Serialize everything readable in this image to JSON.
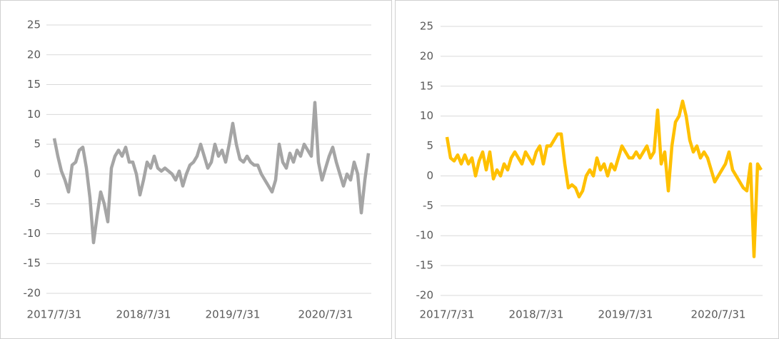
{
  "chart_data": [
    {
      "type": "line",
      "color": "#a5a5a5",
      "grid": true,
      "ylim": [
        -20,
        25
      ],
      "yticks": [
        -20,
        -15,
        -10,
        -5,
        0,
        5,
        10,
        15,
        20,
        25
      ],
      "categories": [
        "2017/7/31",
        null,
        null,
        null,
        null,
        null,
        null,
        null,
        null,
        null,
        null,
        null,
        null,
        null,
        null,
        null,
        null,
        null,
        null,
        null,
        null,
        null,
        null,
        null,
        null,
        "2018/7/31",
        null,
        null,
        null,
        null,
        null,
        null,
        null,
        null,
        null,
        null,
        null,
        null,
        null,
        null,
        null,
        null,
        null,
        null,
        null,
        null,
        null,
        null,
        null,
        null,
        "2019/7/31",
        null,
        null,
        null,
        null,
        null,
        null,
        null,
        null,
        null,
        null,
        null,
        null,
        null,
        null,
        null,
        null,
        null,
        null,
        null,
        null,
        null,
        null,
        null,
        null,
        null,
        "2020/7/31",
        null,
        null,
        null,
        null,
        null,
        null,
        null,
        null,
        null,
        null,
        null,
        null
      ],
      "values": [
        6,
        3,
        0.5,
        -1,
        -3,
        1.5,
        2,
        4,
        4.5,
        1,
        -4,
        -11.5,
        -7,
        -3,
        -5,
        -8,
        1,
        3,
        4,
        3,
        4.5,
        2,
        2,
        0,
        -3.5,
        -1,
        2,
        1,
        3,
        1,
        0.5,
        1,
        0.5,
        0,
        -1,
        0.5,
        -2,
        0,
        1.5,
        2,
        3,
        5,
        3,
        1,
        2,
        5,
        3,
        4,
        2,
        5,
        8.5,
        5,
        2.5,
        2,
        3,
        2,
        1.5,
        1.5,
        0,
        -1,
        -2,
        -3,
        -1,
        5,
        2,
        1,
        3.5,
        2,
        4,
        3,
        5,
        4,
        3,
        12,
        2,
        -1,
        1,
        3,
        4.5,
        2,
        0,
        -2,
        0,
        -1,
        2,
        0,
        -6.5,
        -1,
        3.5
      ]
    },
    {
      "type": "line",
      "color": "#ffc000",
      "grid": true,
      "ylim": [
        -20,
        25
      ],
      "yticks": [
        -20,
        -15,
        -10,
        -5,
        0,
        5,
        10,
        15,
        20,
        25
      ],
      "categories": [
        "2017/7/31",
        null,
        null,
        null,
        null,
        null,
        null,
        null,
        null,
        null,
        null,
        null,
        null,
        null,
        null,
        null,
        null,
        null,
        null,
        null,
        null,
        null,
        null,
        null,
        null,
        "2018/7/31",
        null,
        null,
        null,
        null,
        null,
        null,
        null,
        null,
        null,
        null,
        null,
        null,
        null,
        null,
        null,
        null,
        null,
        null,
        null,
        null,
        null,
        null,
        null,
        null,
        "2019/7/31",
        null,
        null,
        null,
        null,
        null,
        null,
        null,
        null,
        null,
        null,
        null,
        null,
        null,
        null,
        null,
        null,
        null,
        null,
        null,
        null,
        null,
        null,
        null,
        null,
        null,
        "2020/7/31",
        null,
        null,
        null,
        null,
        null,
        null,
        null,
        null,
        null,
        null,
        null,
        null
      ],
      "values": [
        6.5,
        3,
        2.5,
        3.5,
        2,
        3.5,
        2,
        3,
        0,
        2.5,
        4,
        1,
        4,
        -0.5,
        1,
        0,
        2,
        1,
        3,
        4,
        3,
        2,
        4,
        3,
        2,
        4,
        5,
        2,
        5,
        5,
        6,
        7,
        7,
        2,
        -2,
        -1.5,
        -2,
        -3.5,
        -2.5,
        0,
        1,
        0,
        3,
        1,
        2,
        0,
        2,
        1,
        3,
        5,
        4,
        3,
        3,
        4,
        3,
        4,
        5,
        3,
        4,
        11,
        2,
        4,
        -2.5,
        5,
        9,
        10,
        12.5,
        10,
        6,
        4,
        5,
        3,
        4,
        3,
        1,
        -1,
        0,
        1,
        2,
        4,
        1,
        0,
        -1,
        -2,
        -2.5,
        2,
        -13.5,
        2,
        1
      ]
    }
  ]
}
